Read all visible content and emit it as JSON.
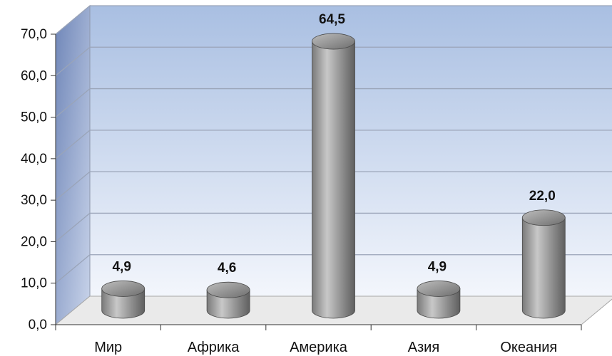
{
  "chart_data": {
    "type": "bar",
    "style": "3d-cylinder",
    "categories": [
      "Мир",
      "Африка",
      "Америка",
      "Азия",
      "Океания"
    ],
    "values": [
      4.9,
      4.6,
      64.5,
      4.9,
      22.0
    ],
    "data_labels": [
      "4,9",
      "4,6",
      "64,5",
      "4,9",
      "22,0"
    ],
    "y_ticks": [
      "0,0",
      "10,0",
      "20,0",
      "30,0",
      "40,0",
      "50,0",
      "60,0",
      "70,0"
    ],
    "ylim": [
      0,
      70
    ],
    "grid": true,
    "legend": "none",
    "title": "",
    "xlabel": "",
    "ylabel": "",
    "colors": {
      "wall_top": "#a9bfe2",
      "wall_bottom": "#f3f6fc",
      "side_wall": "#6f86b8",
      "floor": "#eaeaea",
      "bar_light": "#c8c8c8",
      "bar_dark": "#5f5f5f",
      "gridline": "#9aa4b8"
    }
  }
}
